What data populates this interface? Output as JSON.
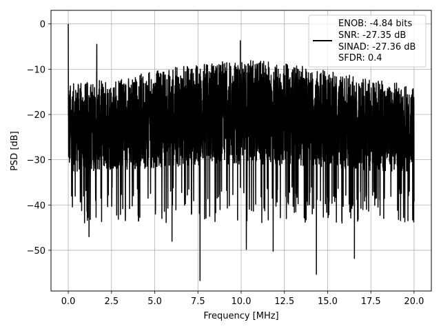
{
  "chart_data": {
    "type": "line",
    "title": "",
    "xlabel": "Frequency [MHz]",
    "ylabel": "PSD [dB]",
    "xlim": [
      -1.0,
      21.0
    ],
    "ylim": [
      -59.0,
      3.0
    ],
    "x_ticks": [
      "0.0",
      "2.5",
      "5.0",
      "7.5",
      "10.0",
      "12.5",
      "15.0",
      "17.5",
      "20.0"
    ],
    "x_tick_values": [
      0,
      2.5,
      5,
      7.5,
      10,
      12.5,
      15,
      17.5,
      20
    ],
    "y_ticks": [
      "0",
      "−10",
      "−20",
      "−30",
      "−40",
      "−50"
    ],
    "y_tick_values": [
      0,
      -10,
      -20,
      -30,
      -40,
      -50
    ],
    "grid": true,
    "legend_position": "top-right",
    "series": [
      {
        "name": "ENOB: -4.84 bits\nSNR: -27.35 dB\nSINAD: -27.36 dB\nSFDR: 0.4",
        "color": "#000000",
        "x_range": [
          0,
          20
        ],
        "y_min": -56.7,
        "y_max": 0.0,
        "y_mean": -21.5,
        "peaks": [
          [
            0.0,
            0.0
          ],
          [
            1.65,
            -4.5
          ],
          [
            9.95,
            -3.7
          ]
        ],
        "notable_dips": [
          [
            7.62,
            -56.7
          ],
          [
            14.35,
            -55.3
          ],
          [
            16.55,
            -51.8
          ],
          [
            6.0,
            -48.0
          ],
          [
            11.85,
            -50.2
          ],
          [
            10.3,
            -49.8
          ],
          [
            1.2,
            -47.0
          ]
        ]
      }
    ],
    "legend": {
      "lines": [
        "ENOB: -4.84 bits",
        "SNR: -27.35 dB",
        "SINAD: -27.36 dB",
        "SFDR: 0.4"
      ]
    }
  }
}
